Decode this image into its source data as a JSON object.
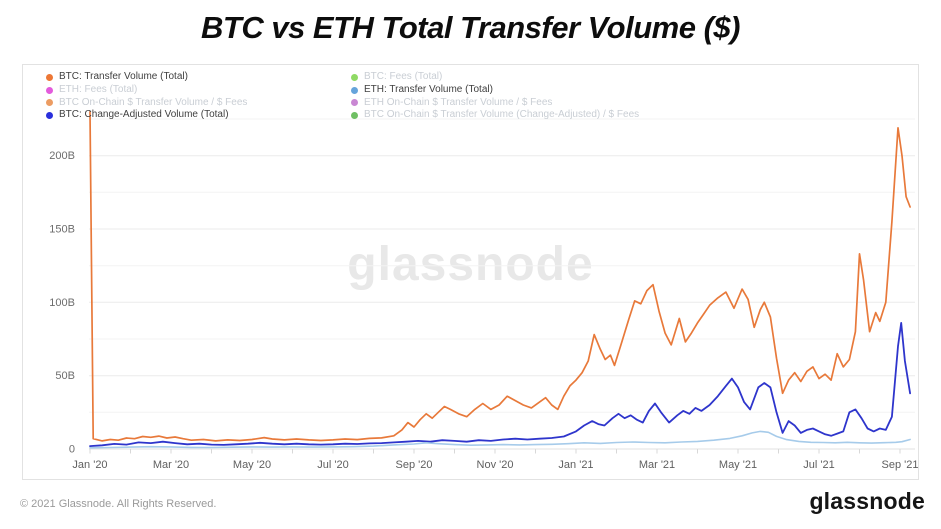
{
  "title": "BTC vs ETH Total Transfer Volume ($)",
  "watermark": "glassnode",
  "footer": {
    "copyright": "© 2021 Glassnode. All Rights Reserved.",
    "logo": "glassnode"
  },
  "legend": {
    "columns": [
      {
        "items": [
          {
            "label": "BTC: Transfer Volume (Total)",
            "color": "#ED7735",
            "active": true
          },
          {
            "label": "ETH: Fees (Total)",
            "color": "#E35BDC",
            "active": false
          },
          {
            "label": "BTC On-Chain $ Transfer Volume / $ Fees",
            "color": "#EC9C62",
            "active": false
          },
          {
            "label": "BTC: Change-Adjusted Volume (Total)",
            "color": "#2A30DC",
            "active": true
          }
        ]
      },
      {
        "items": [
          {
            "label": "BTC: Fees (Total)",
            "color": "#8FDA64",
            "active": false
          },
          {
            "label": "ETH: Transfer Volume (Total)",
            "color": "#66A4DB",
            "active": true
          },
          {
            "label": "ETH On-Chain $ Transfer Volume / $ Fees",
            "color": "#C987D3",
            "active": false
          },
          {
            "label": "BTC On-Chain $ Transfer Volume (Change-Adjusted) / $ Fees",
            "color": "#6FBF63",
            "active": false
          }
        ]
      }
    ]
  },
  "chart_data": {
    "type": "line",
    "title": "BTC vs ETH Total Transfer Volume ($)",
    "xlabel": "",
    "ylabel": "",
    "x_unit": "months since Jan 2020",
    "xlim": [
      0,
      20.35
    ],
    "ylim": [
      0,
      225
    ],
    "grid": true,
    "y_gridline_step": 25,
    "y_ticks": [
      {
        "value": 0,
        "label": "0"
      },
      {
        "value": 50,
        "label": "50B"
      },
      {
        "value": 100,
        "label": "100B"
      },
      {
        "value": 150,
        "label": "150B"
      },
      {
        "value": 200,
        "label": "200B"
      }
    ],
    "x_minor_tick_step": 1,
    "x_ticks": [
      {
        "value": 0,
        "label": "Jan '20"
      },
      {
        "value": 2,
        "label": "Mar '20"
      },
      {
        "value": 4,
        "label": "May '20"
      },
      {
        "value": 6,
        "label": "Jul '20"
      },
      {
        "value": 8,
        "label": "Sep '20"
      },
      {
        "value": 10,
        "label": "Nov '20"
      },
      {
        "value": 12,
        "label": "Jan '21"
      },
      {
        "value": 14,
        "label": "Mar '21"
      },
      {
        "value": 16,
        "label": "May '21"
      },
      {
        "value": 18,
        "label": "Jul '21"
      },
      {
        "value": 20,
        "label": "Sep '21"
      }
    ],
    "value_unit": "USD billions",
    "series": [
      {
        "name": "BTC: Transfer Volume (Total)",
        "color": "#E8793A",
        "stroke_width": 1.7,
        "points": [
          [
            0,
            230
          ],
          [
            0.08,
            7
          ],
          [
            0.3,
            5.5
          ],
          [
            0.5,
            6.5
          ],
          [
            0.7,
            6
          ],
          [
            0.9,
            7.5
          ],
          [
            1.1,
            7
          ],
          [
            1.3,
            8.5
          ],
          [
            1.5,
            8
          ],
          [
            1.7,
            8.8
          ],
          [
            1.9,
            7.5
          ],
          [
            2.1,
            8.2
          ],
          [
            2.3,
            7
          ],
          [
            2.5,
            6
          ],
          [
            2.8,
            6.5
          ],
          [
            3.1,
            5.5
          ],
          [
            3.4,
            6.2
          ],
          [
            3.7,
            5.8
          ],
          [
            4,
            6.5
          ],
          [
            4.3,
            7.8
          ],
          [
            4.5,
            6.8
          ],
          [
            4.8,
            6.2
          ],
          [
            5.1,
            6.8
          ],
          [
            5.4,
            6.2
          ],
          [
            5.7,
            5.8
          ],
          [
            6,
            6.2
          ],
          [
            6.3,
            6.8
          ],
          [
            6.6,
            6.4
          ],
          [
            6.9,
            7.2
          ],
          [
            7.2,
            7.6
          ],
          [
            7.5,
            9
          ],
          [
            7.7,
            13
          ],
          [
            7.85,
            18
          ],
          [
            8,
            15
          ],
          [
            8.15,
            20
          ],
          [
            8.3,
            24
          ],
          [
            8.45,
            21
          ],
          [
            8.6,
            25
          ],
          [
            8.75,
            29
          ],
          [
            8.9,
            27
          ],
          [
            9.1,
            24
          ],
          [
            9.3,
            22
          ],
          [
            9.5,
            27
          ],
          [
            9.7,
            31
          ],
          [
            9.9,
            27
          ],
          [
            10.1,
            30
          ],
          [
            10.3,
            36
          ],
          [
            10.5,
            33
          ],
          [
            10.7,
            30
          ],
          [
            10.9,
            28
          ],
          [
            11.1,
            32
          ],
          [
            11.25,
            35
          ],
          [
            11.4,
            30
          ],
          [
            11.55,
            27
          ],
          [
            11.7,
            36
          ],
          [
            11.85,
            43
          ],
          [
            12,
            47
          ],
          [
            12.15,
            52
          ],
          [
            12.3,
            60
          ],
          [
            12.45,
            78
          ],
          [
            12.6,
            68
          ],
          [
            12.72,
            61
          ],
          [
            12.85,
            64
          ],
          [
            12.95,
            57
          ],
          [
            13.1,
            70
          ],
          [
            13.3,
            88
          ],
          [
            13.45,
            101
          ],
          [
            13.6,
            99
          ],
          [
            13.75,
            108
          ],
          [
            13.9,
            112
          ],
          [
            14.05,
            94
          ],
          [
            14.2,
            79
          ],
          [
            14.35,
            71
          ],
          [
            14.55,
            89
          ],
          [
            14.7,
            73
          ],
          [
            14.85,
            79
          ],
          [
            15,
            86
          ],
          [
            15.15,
            92
          ],
          [
            15.3,
            98
          ],
          [
            15.5,
            103
          ],
          [
            15.7,
            107
          ],
          [
            15.9,
            96
          ],
          [
            16.1,
            109
          ],
          [
            16.25,
            102
          ],
          [
            16.4,
            83
          ],
          [
            16.55,
            95
          ],
          [
            16.65,
            100
          ],
          [
            16.8,
            90
          ],
          [
            16.95,
            62
          ],
          [
            17.1,
            38
          ],
          [
            17.25,
            47
          ],
          [
            17.4,
            52
          ],
          [
            17.55,
            46
          ],
          [
            17.7,
            53
          ],
          [
            17.85,
            56
          ],
          [
            18,
            48
          ],
          [
            18.15,
            51
          ],
          [
            18.3,
            47
          ],
          [
            18.45,
            65
          ],
          [
            18.6,
            56
          ],
          [
            18.75,
            61
          ],
          [
            18.9,
            80
          ],
          [
            19,
            133
          ],
          [
            19.1,
            115
          ],
          [
            19.25,
            80
          ],
          [
            19.4,
            93
          ],
          [
            19.5,
            87
          ],
          [
            19.65,
            100
          ],
          [
            19.8,
            155
          ],
          [
            19.95,
            219
          ],
          [
            20.05,
            200
          ],
          [
            20.15,
            172
          ],
          [
            20.25,
            165
          ]
        ]
      },
      {
        "name": "BTC: Change-Adjusted Volume (Total)",
        "color": "#2E35CC",
        "stroke_width": 1.8,
        "points": [
          [
            0,
            2
          ],
          [
            0.3,
            2.5
          ],
          [
            0.6,
            3.5
          ],
          [
            0.9,
            3
          ],
          [
            1.2,
            4.5
          ],
          [
            1.5,
            4
          ],
          [
            1.8,
            5
          ],
          [
            2.1,
            4
          ],
          [
            2.4,
            3.2
          ],
          [
            2.7,
            3.6
          ],
          [
            3,
            3
          ],
          [
            3.3,
            2.8
          ],
          [
            3.6,
            3.2
          ],
          [
            3.9,
            3.6
          ],
          [
            4.2,
            4.2
          ],
          [
            4.5,
            3.6
          ],
          [
            4.8,
            3.2
          ],
          [
            5.1,
            3.6
          ],
          [
            5.4,
            3.2
          ],
          [
            5.7,
            3
          ],
          [
            6,
            3.2
          ],
          [
            6.3,
            3.6
          ],
          [
            6.6,
            3.4
          ],
          [
            6.9,
            3.8
          ],
          [
            7.2,
            4
          ],
          [
            7.5,
            4.5
          ],
          [
            7.8,
            5
          ],
          [
            8.1,
            5.5
          ],
          [
            8.4,
            5
          ],
          [
            8.7,
            6
          ],
          [
            9,
            5.5
          ],
          [
            9.3,
            5
          ],
          [
            9.6,
            6
          ],
          [
            9.9,
            5.5
          ],
          [
            10.2,
            6.5
          ],
          [
            10.5,
            7
          ],
          [
            10.8,
            6.5
          ],
          [
            11.1,
            7
          ],
          [
            11.4,
            7.5
          ],
          [
            11.7,
            8.5
          ],
          [
            12,
            12
          ],
          [
            12.2,
            16
          ],
          [
            12.4,
            19
          ],
          [
            12.55,
            17
          ],
          [
            12.7,
            16
          ],
          [
            12.9,
            21
          ],
          [
            13.05,
            24
          ],
          [
            13.2,
            21
          ],
          [
            13.35,
            23
          ],
          [
            13.5,
            20
          ],
          [
            13.65,
            18
          ],
          [
            13.8,
            26
          ],
          [
            13.95,
            31
          ],
          [
            14.1,
            25
          ],
          [
            14.3,
            18
          ],
          [
            14.5,
            23
          ],
          [
            14.65,
            26
          ],
          [
            14.8,
            24
          ],
          [
            14.95,
            28
          ],
          [
            15.1,
            26
          ],
          [
            15.3,
            30
          ],
          [
            15.5,
            36
          ],
          [
            15.7,
            43
          ],
          [
            15.85,
            48
          ],
          [
            16,
            42
          ],
          [
            16.15,
            32
          ],
          [
            16.3,
            27
          ],
          [
            16.5,
            42
          ],
          [
            16.65,
            45
          ],
          [
            16.8,
            42
          ],
          [
            16.95,
            25
          ],
          [
            17.1,
            11
          ],
          [
            17.25,
            19
          ],
          [
            17.4,
            16
          ],
          [
            17.55,
            11
          ],
          [
            17.7,
            13
          ],
          [
            17.85,
            14
          ],
          [
            18,
            12
          ],
          [
            18.15,
            10
          ],
          [
            18.3,
            9
          ],
          [
            18.45,
            10.5
          ],
          [
            18.6,
            12
          ],
          [
            18.75,
            25
          ],
          [
            18.9,
            27
          ],
          [
            19.05,
            21
          ],
          [
            19.2,
            14
          ],
          [
            19.35,
            12
          ],
          [
            19.5,
            14
          ],
          [
            19.65,
            13
          ],
          [
            19.8,
            22
          ],
          [
            19.95,
            70
          ],
          [
            20.03,
            86
          ],
          [
            20.12,
            60
          ],
          [
            20.25,
            38
          ]
        ]
      },
      {
        "name": "ETH: Transfer Volume (Total)",
        "color": "#A6CBEA",
        "stroke_width": 1.6,
        "points": [
          [
            0,
            0.8
          ],
          [
            0.5,
            1
          ],
          [
            1,
            1.3
          ],
          [
            1.5,
            1.6
          ],
          [
            2,
            1.4
          ],
          [
            2.5,
            1.1
          ],
          [
            3,
            1
          ],
          [
            3.5,
            1.2
          ],
          [
            4,
            1.4
          ],
          [
            4.5,
            1.3
          ],
          [
            5,
            1.4
          ],
          [
            5.5,
            1.3
          ],
          [
            6,
            1.4
          ],
          [
            6.5,
            1.6
          ],
          [
            7,
            2
          ],
          [
            7.5,
            2.8
          ],
          [
            8,
            3.4
          ],
          [
            8.3,
            4.2
          ],
          [
            8.6,
            3.6
          ],
          [
            9,
            3
          ],
          [
            9.4,
            2.6
          ],
          [
            9.8,
            2.8
          ],
          [
            10.2,
            3
          ],
          [
            10.6,
            2.8
          ],
          [
            11,
            3
          ],
          [
            11.4,
            3.2
          ],
          [
            11.8,
            3.6
          ],
          [
            12.2,
            4.2
          ],
          [
            12.6,
            3.8
          ],
          [
            13,
            4.4
          ],
          [
            13.4,
            4.8
          ],
          [
            13.8,
            4.4
          ],
          [
            14.2,
            4.2
          ],
          [
            14.6,
            4.8
          ],
          [
            15,
            5.2
          ],
          [
            15.4,
            6
          ],
          [
            15.8,
            7.2
          ],
          [
            16.1,
            9
          ],
          [
            16.35,
            11
          ],
          [
            16.55,
            12
          ],
          [
            16.75,
            11.4
          ],
          [
            16.95,
            8.6
          ],
          [
            17.2,
            6.4
          ],
          [
            17.5,
            5.2
          ],
          [
            17.8,
            4.6
          ],
          [
            18.1,
            4.4
          ],
          [
            18.4,
            4.2
          ],
          [
            18.7,
            4.6
          ],
          [
            19,
            4.2
          ],
          [
            19.3,
            4
          ],
          [
            19.6,
            4.3
          ],
          [
            19.9,
            4.6
          ],
          [
            20.05,
            5
          ],
          [
            20.25,
            6.5
          ]
        ]
      }
    ],
    "legend_position": "top-left, two columns, inactive items greyed"
  }
}
